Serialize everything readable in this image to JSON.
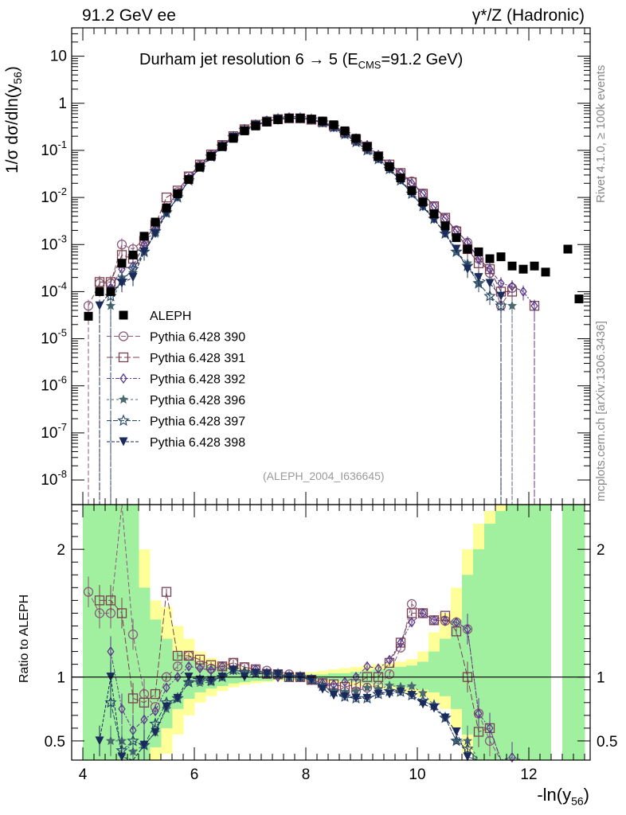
{
  "header": {
    "left": "91.2 GeV ee",
    "right": "γ*/Z (Hadronic)"
  },
  "side_labels": {
    "rivet": "Rivet 4.1.0, ≥ 100k events",
    "mcplots": "mcplots.cern.ch [arXiv:1306.3436]"
  },
  "analysis_tag": "(ALEPH_2004_I636645)",
  "colors": {
    "data": "#000000",
    "p390": "#8a5a7a",
    "p391": "#7a4050",
    "p392": "#5a3a8a",
    "p396": "#4a6a70",
    "p397": "#2a4a6a",
    "p398": "#1a2a5a",
    "band_green": "#a0f0a0",
    "band_yellow": "#ffff99"
  },
  "chart_data": [
    {
      "type": "scatter",
      "title": "Durham jet resolution 6 → 5 (E_CMS=91.2 GeV)",
      "title_main": "Durham jet resolution 6",
      "title_arrow": "→",
      "title_rest": "5 (E",
      "title_sub": "CMS",
      "title_end": "=91.2 GeV)",
      "ylabel": "1/σ dσ/dln(y56)",
      "ylabel_main": "1/σ dσ/dln(y",
      "ylabel_sub": "56",
      "ylabel_end": ")",
      "yscale": "log",
      "ylim": [
        3e-09,
        40
      ],
      "xlim": [
        3.8,
        13.1
      ],
      "yticks": [
        {
          "v": 1e-08,
          "label": "10",
          "exp": "-8"
        },
        {
          "v": 1e-07,
          "label": "10",
          "exp": "-7"
        },
        {
          "v": 1e-06,
          "label": "10",
          "exp": "-6"
        },
        {
          "v": 1e-05,
          "label": "10",
          "exp": "-5"
        },
        {
          "v": 0.0001,
          "label": "10",
          "exp": "-4"
        },
        {
          "v": 0.001,
          "label": "10",
          "exp": "-3"
        },
        {
          "v": 0.01,
          "label": "10",
          "exp": "-2"
        },
        {
          "v": 0.1,
          "label": "10",
          "exp": "-1"
        },
        {
          "v": 1,
          "label": "1",
          "exp": ""
        },
        {
          "v": 10,
          "label": "10",
          "exp": ""
        }
      ],
      "legend": [
        {
          "label": "ALEPH",
          "marker": "square",
          "color_key": "data"
        },
        {
          "label": "Pythia 6.428 390",
          "marker": "circle",
          "color_key": "p390"
        },
        {
          "label": "Pythia 6.428 391",
          "marker": "open-square",
          "color_key": "p391"
        },
        {
          "label": "Pythia 6.428 392",
          "marker": "diamond",
          "color_key": "p392"
        },
        {
          "label": "Pythia 6.428 396",
          "marker": "star",
          "color_key": "p396"
        },
        {
          "label": "Pythia 6.428 397",
          "marker": "open-star",
          "color_key": "p397"
        },
        {
          "label": "Pythia 6.428 398",
          "marker": "triangle-down",
          "color_key": "p398"
        }
      ],
      "x": [
        4.1,
        4.3,
        4.5,
        4.7,
        4.9,
        5.1,
        5.3,
        5.5,
        5.7,
        5.9,
        6.1,
        6.3,
        6.5,
        6.7,
        6.9,
        7.1,
        7.3,
        7.5,
        7.7,
        7.9,
        8.1,
        8.3,
        8.5,
        8.7,
        8.9,
        9.1,
        9.3,
        9.5,
        9.7,
        9.9,
        10.1,
        10.3,
        10.5,
        10.7,
        10.9,
        11.1,
        11.3,
        11.5,
        11.7,
        11.9,
        12.1,
        12.3,
        12.7,
        12.9
      ],
      "data": [
        3e-05,
        0.0001,
        0.0001,
        0.0004,
        0.0006,
        0.0015,
        0.003,
        0.006,
        0.012,
        0.024,
        0.044,
        0.075,
        0.12,
        0.18,
        0.26,
        0.33,
        0.4,
        0.45,
        0.48,
        0.48,
        0.46,
        0.42,
        0.35,
        0.26,
        0.18,
        0.12,
        0.075,
        0.045,
        0.026,
        0.014,
        0.008,
        0.0045,
        0.0025,
        0.0014,
        0.0008,
        0.0007,
        0.0005,
        0.00055,
        0.00035,
        0.0003,
        0.00035,
        0.00026,
        0.0008,
        7e-05
      ],
      "series": [
        {
          "name": "Pythia 6.428 390",
          "marker": "circle",
          "color_key": "p390",
          "values": [
            5e-05,
            0.00015,
            0.00015,
            0.001,
            0.0008,
            0.0013,
            0.0023,
            0.006,
            0.013,
            0.028,
            0.048,
            0.08,
            0.13,
            0.2,
            0.28,
            0.35,
            0.42,
            0.46,
            0.49,
            0.48,
            0.45,
            0.4,
            0.32,
            0.23,
            0.16,
            0.11,
            0.07,
            0.046,
            0.032,
            0.022,
            0.012,
            0.0065,
            0.0036,
            0.002,
            0.0011,
            0.0005,
            0.00025,
            5e-05,
            0.00012,
            null,
            null,
            null,
            null,
            null
          ]
        },
        {
          "name": "Pythia 6.428 391",
          "marker": "open-square",
          "color_key": "p391",
          "values": [
            null,
            0.00016,
            0.00016,
            0.0006,
            0.0005,
            0.0012,
            0.0026,
            0.01,
            0.014,
            0.028,
            0.05,
            0.082,
            0.13,
            0.2,
            0.28,
            0.35,
            0.41,
            0.46,
            0.48,
            0.48,
            0.45,
            0.4,
            0.33,
            0.24,
            0.17,
            0.12,
            0.075,
            0.05,
            0.033,
            0.021,
            0.012,
            0.0065,
            0.0037,
            0.0019,
            0.0008,
            0.0004,
            0.0003,
            0.0001,
            0.0001,
            null,
            5e-05,
            null,
            null,
            null
          ]
        },
        {
          "name": "Pythia 6.428 392",
          "marker": "diamond",
          "color_key": "p392",
          "values": [
            null,
            null,
            0.00012,
            0.0003,
            0.00035,
            0.001,
            0.0022,
            0.0055,
            0.012,
            0.026,
            0.047,
            0.079,
            0.13,
            0.19,
            0.27,
            0.35,
            0.41,
            0.45,
            0.48,
            0.48,
            0.45,
            0.4,
            0.33,
            0.25,
            0.18,
            0.13,
            0.08,
            0.051,
            0.033,
            0.02,
            0.012,
            0.0065,
            0.0036,
            0.002,
            0.0011,
            0.0005,
            0.0003,
            0.00015,
            0.00013,
            0.0001,
            5e-05,
            null,
            null,
            null
          ]
        },
        {
          "name": "Pythia 6.428 396",
          "marker": "star",
          "color_key": "p396",
          "values": [
            null,
            null,
            5e-05,
            0.0002,
            0.00025,
            0.0007,
            0.0017,
            0.0045,
            0.01,
            0.023,
            0.042,
            0.072,
            0.12,
            0.19,
            0.27,
            0.34,
            0.41,
            0.46,
            0.48,
            0.48,
            0.45,
            0.39,
            0.31,
            0.23,
            0.16,
            0.11,
            0.068,
            0.042,
            0.024,
            0.013,
            0.007,
            0.0035,
            0.0017,
            0.0007,
            0.0004,
            0.00015,
            null,
            null,
            5e-05,
            null,
            null,
            null,
            null,
            null
          ]
        },
        {
          "name": "Pythia 6.428 397",
          "marker": "open-star",
          "color_key": "p397",
          "values": [
            null,
            null,
            8e-05,
            0.00017,
            0.0003,
            0.0007,
            0.0019,
            0.0048,
            0.01,
            0.023,
            0.043,
            0.073,
            0.12,
            0.19,
            0.27,
            0.34,
            0.41,
            0.46,
            0.48,
            0.48,
            0.45,
            0.39,
            0.31,
            0.22,
            0.15,
            0.1,
            0.065,
            0.04,
            0.023,
            0.012,
            0.0065,
            0.0035,
            0.0017,
            0.0007,
            0.00035,
            0.00015,
            8e-05,
            5e-05,
            null,
            null,
            null,
            null,
            null,
            null
          ]
        },
        {
          "name": "Pythia 6.428 398",
          "marker": "triangle-down",
          "color_key": "p398",
          "values": [
            null,
            5e-05,
            0.0001,
            0.00015,
            0.0002,
            0.0007,
            0.0017,
            0.0046,
            0.01,
            0.024,
            0.043,
            0.073,
            0.12,
            0.19,
            0.26,
            0.34,
            0.41,
            0.46,
            0.48,
            0.48,
            0.45,
            0.38,
            0.3,
            0.22,
            0.15,
            0.1,
            0.065,
            0.039,
            0.023,
            0.012,
            0.0063,
            0.0034,
            0.0017,
            0.0008,
            0.0003,
            0.0002,
            0.00015,
            8e-05,
            null,
            null,
            null,
            null,
            null,
            null
          ]
        }
      ]
    },
    {
      "type": "scatter",
      "title": "",
      "ylabel": "Ratio to ALEPH",
      "xlabel": "-ln(y56)",
      "xlabel_main": "-ln(y",
      "xlabel_sub": "56",
      "xlabel_end": ")",
      "ylim": [
        0.35,
        2.35
      ],
      "xlim": [
        3.8,
        13.1
      ],
      "xticks": [
        4,
        6,
        8,
        10,
        12
      ],
      "yticks": [
        0.5,
        1,
        2
      ],
      "ytick_labels": [
        "0.5",
        "1",
        "2"
      ],
      "reference_line": 1,
      "uncertainty_bands": {
        "edges": [
          4.0,
          4.2,
          4.4,
          4.6,
          4.8,
          5.0,
          5.2,
          5.4,
          5.6,
          5.8,
          6.0,
          6.2,
          6.4,
          6.6,
          6.8,
          7.0,
          7.2,
          7.4,
          7.6,
          7.8,
          8.0,
          8.2,
          8.4,
          8.6,
          8.8,
          9.0,
          9.2,
          9.4,
          9.6,
          9.8,
          10.0,
          10.2,
          10.4,
          10.6,
          10.8,
          11.0,
          11.2,
          11.4,
          11.6,
          11.8,
          12.0,
          12.2,
          12.4,
          12.6,
          12.8,
          13.0
        ],
        "green_lo": [
          0.2,
          0.2,
          0.2,
          0.2,
          0.2,
          0.3,
          0.45,
          0.6,
          0.75,
          0.83,
          0.88,
          0.91,
          0.93,
          0.95,
          0.96,
          0.97,
          0.97,
          0.98,
          0.98,
          0.98,
          0.98,
          0.98,
          0.98,
          0.97,
          0.96,
          0.95,
          0.94,
          0.93,
          0.92,
          0.91,
          0.9,
          0.88,
          0.85,
          0.75,
          0.55,
          0.3,
          0.2,
          0.2,
          0.2,
          0.2,
          0.2,
          0.2,
          null,
          0.2,
          0.2
        ],
        "green_hi": [
          2.4,
          2.4,
          2.4,
          2.4,
          2.4,
          1.7,
          1.45,
          1.3,
          1.2,
          1.15,
          1.11,
          1.09,
          1.07,
          1.05,
          1.04,
          1.03,
          1.03,
          1.02,
          1.02,
          1.02,
          1.02,
          1.02,
          1.03,
          1.03,
          1.04,
          1.05,
          1.06,
          1.07,
          1.08,
          1.09,
          1.12,
          1.2,
          1.3,
          1.45,
          1.8,
          2.0,
          2.2,
          2.3,
          2.4,
          2.4,
          2.4,
          2.4,
          null,
          2.4,
          2.4
        ],
        "yellow_lo": [
          0.2,
          0.2,
          0.2,
          0.2,
          0.2,
          0.2,
          0.3,
          0.4,
          0.55,
          0.7,
          0.8,
          0.85,
          0.89,
          0.92,
          0.94,
          0.95,
          0.96,
          0.97,
          0.97,
          0.97,
          0.97,
          0.96,
          0.95,
          0.94,
          0.93,
          0.92,
          0.91,
          0.9,
          0.88,
          0.86,
          0.84,
          0.8,
          0.75,
          0.6,
          0.4,
          0.2,
          0.2,
          0.2,
          0.2,
          0.2,
          0.2,
          0.2,
          null,
          0.2,
          0.2
        ],
        "yellow_hi": [
          2.4,
          2.4,
          2.4,
          2.4,
          2.4,
          2.0,
          1.6,
          1.55,
          1.4,
          1.3,
          1.2,
          1.15,
          1.12,
          1.09,
          1.07,
          1.05,
          1.04,
          1.04,
          1.03,
          1.03,
          1.04,
          1.05,
          1.06,
          1.07,
          1.08,
          1.09,
          1.1,
          1.11,
          1.12,
          1.14,
          1.2,
          1.35,
          1.5,
          1.7,
          2.0,
          2.2,
          2.3,
          2.4,
          2.4,
          2.4,
          2.4,
          2.4,
          null,
          2.4,
          2.4
        ]
      }
    }
  ]
}
